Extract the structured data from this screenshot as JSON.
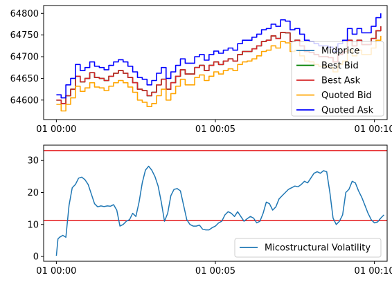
{
  "chart_data": [
    {
      "type": "line",
      "xlim": [
        -0.4,
        10.4
      ],
      "ylim": [
        64555,
        64818
      ],
      "x_ticks": [
        0,
        5,
        10
      ],
      "x_tick_labels": [
        "01 00:00",
        "01 00:05",
        "01 00:10"
      ],
      "y_ticks": [
        64600,
        64650,
        64700,
        64750,
        64800
      ],
      "y_tick_labels": [
        "64600",
        "64650",
        "64700",
        "64750",
        "64800"
      ],
      "legend_position": "lower-right",
      "legend": [
        "Midprice",
        "Best Bid",
        "Best Ask",
        "Quoted Bid",
        "Quoted Ask"
      ],
      "x_unit": "minutes after 01 00:00",
      "x": [
        0.0,
        0.15,
        0.3,
        0.45,
        0.6,
        0.75,
        0.9,
        1.05,
        1.2,
        1.35,
        1.5,
        1.65,
        1.8,
        1.95,
        2.1,
        2.25,
        2.4,
        2.55,
        2.7,
        2.85,
        3.0,
        3.15,
        3.3,
        3.45,
        3.6,
        3.75,
        3.9,
        4.05,
        4.2,
        4.35,
        4.5,
        4.65,
        4.8,
        4.95,
        5.1,
        5.25,
        5.4,
        5.55,
        5.7,
        5.85,
        6.0,
        6.15,
        6.3,
        6.45,
        6.6,
        6.75,
        6.9,
        7.05,
        7.2,
        7.35,
        7.5,
        7.65,
        7.8,
        7.95,
        8.1,
        8.25,
        8.4,
        8.55,
        8.7,
        8.85,
        9.0,
        9.15,
        9.3,
        9.45,
        9.6,
        9.75,
        9.9,
        10.05,
        10.2
      ],
      "series": [
        {
          "name": "Midprice",
          "color": "#1f77b4",
          "values": [
            64600,
            64592,
            64610,
            64625,
            64655,
            64642,
            64650,
            64663,
            64652,
            64650,
            64645,
            64655,
            64662,
            64668,
            64662,
            64652,
            64640,
            64625,
            64622,
            64610,
            64618,
            64635,
            64648,
            64625,
            64640,
            64655,
            64670,
            64660,
            64660,
            64675,
            64680,
            64668,
            64680,
            64688,
            64682,
            64690,
            64695,
            64690,
            64705,
            64712,
            64712,
            64718,
            64725,
            64735,
            64738,
            64748,
            64742,
            64756,
            64755,
            64735,
            64738,
            64725,
            64712,
            64710,
            64705,
            64700,
            64700,
            64698,
            64688,
            64705,
            64712,
            64738,
            64725,
            64738,
            64728,
            64728,
            64742,
            64760,
            64770
          ]
        },
        {
          "name": "Best Bid",
          "color": "#008000",
          "values": [
            64600,
            64592,
            64610,
            64625,
            64655,
            64642,
            64650,
            64663,
            64652,
            64650,
            64645,
            64655,
            64662,
            64668,
            64662,
            64652,
            64640,
            64625,
            64622,
            64610,
            64618,
            64635,
            64648,
            64625,
            64640,
            64655,
            64670,
            64660,
            64660,
            64675,
            64680,
            64668,
            64680,
            64688,
            64682,
            64690,
            64695,
            64690,
            64705,
            64712,
            64712,
            64718,
            64725,
            64735,
            64738,
            64748,
            64742,
            64756,
            64755,
            64735,
            64738,
            64725,
            64712,
            64710,
            64705,
            64700,
            64700,
            64698,
            64688,
            64705,
            64712,
            64738,
            64725,
            64738,
            64728,
            64728,
            64742,
            64760,
            64770
          ]
        },
        {
          "name": "Best Ask",
          "color": "#d62728",
          "values": [
            64600,
            64592,
            64610,
            64625,
            64655,
            64642,
            64650,
            64663,
            64652,
            64650,
            64645,
            64655,
            64662,
            64668,
            64662,
            64652,
            64640,
            64625,
            64622,
            64610,
            64618,
            64635,
            64648,
            64625,
            64640,
            64655,
            64670,
            64660,
            64660,
            64675,
            64680,
            64668,
            64680,
            64688,
            64682,
            64690,
            64695,
            64690,
            64705,
            64712,
            64712,
            64718,
            64725,
            64735,
            64738,
            64748,
            64742,
            64756,
            64755,
            64735,
            64738,
            64725,
            64712,
            64710,
            64705,
            64700,
            64700,
            64698,
            64688,
            64705,
            64712,
            64738,
            64725,
            64738,
            64728,
            64728,
            64742,
            64760,
            64770
          ]
        },
        {
          "name": "Quoted Bid",
          "color": "#ffa500",
          "values": [
            64590,
            64575,
            64590,
            64605,
            64632,
            64620,
            64628,
            64640,
            64630,
            64628,
            64622,
            64632,
            64640,
            64645,
            64640,
            64630,
            64618,
            64600,
            64595,
            64585,
            64592,
            64610,
            64625,
            64600,
            64615,
            64632,
            64648,
            64635,
            64635,
            64652,
            64658,
            64645,
            64655,
            64665,
            64660,
            64668,
            64672,
            64668,
            64682,
            64688,
            64690,
            64695,
            64702,
            64712,
            64715,
            64725,
            64720,
            64735,
            64732,
            64712,
            64715,
            64702,
            64690,
            64688,
            64682,
            64678,
            64678,
            64675,
            64665,
            64682,
            64690,
            64715,
            64702,
            64715,
            64705,
            64705,
            64720,
            64738,
            64748
          ]
        },
        {
          "name": "Quoted Ask",
          "color": "#0000ff",
          "values": [
            64612,
            64605,
            64635,
            64650,
            64682,
            64668,
            64675,
            64688,
            64678,
            64675,
            64670,
            64680,
            64688,
            64693,
            64688,
            64678,
            64665,
            64652,
            64648,
            64635,
            64645,
            64662,
            64675,
            64650,
            64665,
            64680,
            64695,
            64685,
            64685,
            64700,
            64705,
            64692,
            64705,
            64713,
            64708,
            64715,
            64720,
            64715,
            64730,
            64738,
            64738,
            64745,
            64752,
            64762,
            64765,
            64775,
            64770,
            64785,
            64782,
            64762,
            64765,
            64752,
            64738,
            64735,
            64730,
            64725,
            64725,
            64722,
            64712,
            64730,
            64738,
            64765,
            64752,
            64765,
            64755,
            64755,
            64770,
            64790,
            64800
          ]
        }
      ]
    },
    {
      "type": "line",
      "xlim": [
        -0.4,
        10.4
      ],
      "ylim": [
        -1.5,
        34.8
      ],
      "x_ticks": [
        0,
        5,
        10
      ],
      "x_tick_labels": [
        "01 00:00",
        "01 00:05",
        "01 00:10"
      ],
      "y_ticks": [
        0,
        10,
        20,
        30
      ],
      "y_tick_labels": [
        "0",
        "10",
        "20",
        "30"
      ],
      "legend_position": "lower-right",
      "legend": [
        "Micostructural Volatility"
      ],
      "x_unit": "minutes after 01 00:00",
      "hlines": [
        {
          "y": 33.1,
          "color": "#e41a1c"
        },
        {
          "y": 11.2,
          "color": "#e41a1c"
        }
      ],
      "x": [
        0.0,
        0.05,
        0.1,
        0.2,
        0.3,
        0.4,
        0.5,
        0.6,
        0.7,
        0.8,
        0.9,
        1.0,
        1.1,
        1.2,
        1.3,
        1.4,
        1.5,
        1.6,
        1.7,
        1.8,
        1.9,
        2.0,
        2.1,
        2.2,
        2.3,
        2.4,
        2.5,
        2.6,
        2.7,
        2.8,
        2.9,
        3.0,
        3.1,
        3.2,
        3.3,
        3.4,
        3.5,
        3.6,
        3.7,
        3.8,
        3.9,
        4.0,
        4.1,
        4.2,
        4.3,
        4.4,
        4.5,
        4.6,
        4.7,
        4.8,
        4.9,
        5.0,
        5.1,
        5.2,
        5.3,
        5.4,
        5.5,
        5.6,
        5.7,
        5.8,
        5.9,
        6.0,
        6.1,
        6.2,
        6.3,
        6.4,
        6.5,
        6.6,
        6.7,
        6.8,
        6.9,
        7.0,
        7.1,
        7.2,
        7.3,
        7.4,
        7.5,
        7.6,
        7.7,
        7.8,
        7.9,
        8.0,
        8.1,
        8.2,
        8.3,
        8.4,
        8.5,
        8.6,
        8.7,
        8.8,
        8.9,
        9.0,
        9.1,
        9.2,
        9.3,
        9.4,
        9.5,
        9.6,
        9.7,
        9.8,
        9.9,
        10.0,
        10.1,
        10.2,
        10.3
      ],
      "series": [
        {
          "name": "Micostructural Volatility",
          "color": "#1f77b4",
          "values": [
            0.2,
            5.5,
            6.0,
            6.6,
            6.0,
            16.0,
            21.5,
            22.5,
            24.5,
            24.8,
            24.0,
            22.5,
            19.5,
            16.5,
            15.5,
            15.8,
            15.6,
            15.8,
            15.7,
            16.2,
            14.5,
            9.5,
            10.0,
            11.0,
            11.5,
            13.5,
            12.5,
            17.0,
            23.0,
            27.0,
            28.2,
            27.0,
            25.0,
            22.0,
            17.0,
            11.0,
            13.5,
            19.0,
            21.0,
            21.2,
            20.5,
            16.0,
            11.5,
            10.0,
            9.5,
            9.5,
            9.8,
            8.5,
            8.3,
            8.3,
            9.0,
            9.5,
            10.5,
            11.0,
            13.0,
            14.0,
            13.5,
            12.5,
            14.0,
            12.5,
            11.0,
            11.8,
            12.5,
            12.0,
            10.5,
            11.0,
            13.5,
            17.0,
            16.5,
            14.5,
            15.5,
            18.0,
            19.0,
            20.0,
            21.0,
            21.5,
            22.0,
            21.8,
            22.5,
            23.5,
            23.0,
            24.5,
            26.0,
            26.5,
            26.0,
            26.8,
            26.5,
            20.0,
            12.0,
            10.0,
            11.0,
            13.0,
            20.0,
            21.0,
            23.5,
            23.0,
            20.5,
            18.5,
            16.0,
            13.5,
            11.5,
            10.5,
            10.8,
            12.0,
            13.0
          ]
        }
      ]
    }
  ]
}
